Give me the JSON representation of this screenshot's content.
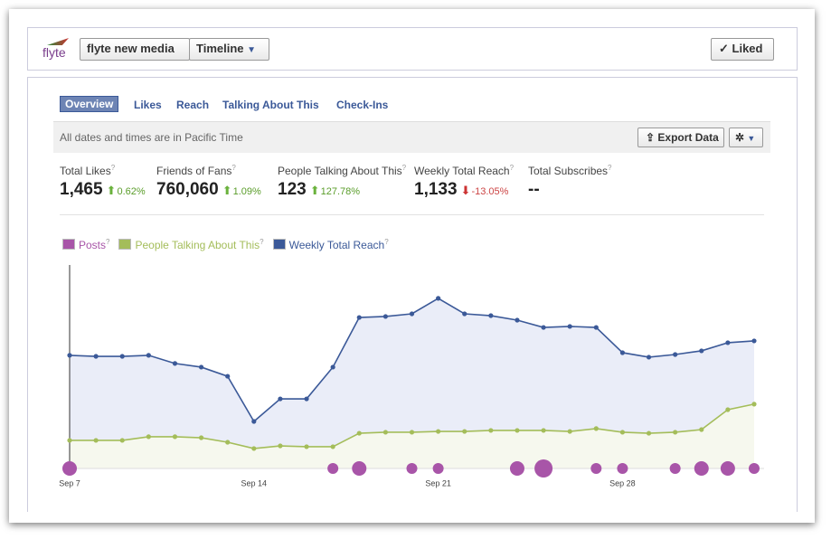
{
  "header": {
    "logo": "flyte",
    "page_name": "flyte new media",
    "view": "Timeline",
    "liked": "Liked"
  },
  "tabs": [
    "Overview",
    "Likes",
    "Reach",
    "Talking About This",
    "Check-Ins"
  ],
  "timezone_note": "All dates and times are in Pacific Time",
  "export": "Export Data",
  "help": "?",
  "stats": [
    {
      "label": "Total Likes",
      "value": "1,465",
      "change": "0.62%",
      "direction": "up"
    },
    {
      "label": "Friends of Fans",
      "value": "760,060",
      "change": "1.09%",
      "direction": "up"
    },
    {
      "label": "People Talking About This",
      "value": "123",
      "change": "127.78%",
      "direction": "up"
    },
    {
      "label": "Weekly Total Reach",
      "value": "1,133",
      "change": "-13.05%",
      "direction": "down"
    },
    {
      "label": "Total Subscribes",
      "value": "--"
    }
  ],
  "chart_data": {
    "type": "line",
    "categories": [
      "Sep 7",
      null,
      null,
      null,
      null,
      null,
      null,
      "Sep 14",
      null,
      null,
      null,
      null,
      null,
      null,
      "Sep 21",
      null,
      null,
      null,
      null,
      null,
      null,
      "Sep 28",
      null,
      null,
      null,
      null,
      null
    ],
    "ylim": [
      0,
      100
    ],
    "series": [
      {
        "name": "Posts",
        "color": "#a855a8",
        "kind": "bubble",
        "values": [
          2,
          null,
          null,
          null,
          null,
          null,
          null,
          null,
          null,
          null,
          1,
          2,
          null,
          1,
          1,
          null,
          null,
          2,
          3,
          null,
          1,
          1,
          null,
          1,
          2,
          2,
          1
        ]
      },
      {
        "name": "People Talking About This",
        "color": "#a4bd5a",
        "kind": "area",
        "fill": "#f6f8ee",
        "values": [
          13.8,
          13.8,
          13.8,
          15.6,
          15.6,
          15.1,
          12.9,
          9.8,
          11.1,
          10.7,
          10.7,
          17.3,
          17.8,
          17.8,
          18.2,
          18.2,
          18.7,
          18.7,
          18.7,
          18.2,
          19.6,
          17.8,
          17.3,
          17.8,
          19.1,
          28.9,
          31.6
        ]
      },
      {
        "name": "Weekly Total Reach",
        "color": "#3b5998",
        "kind": "area",
        "fill": "#eaedf8",
        "values": [
          55.6,
          55.1,
          55.1,
          55.6,
          51.6,
          49.8,
          45.3,
          23.1,
          34.2,
          34.2,
          49.8,
          74.2,
          74.7,
          76.0,
          83.6,
          76.0,
          75.1,
          72.9,
          69.3,
          69.8,
          69.3,
          56.9,
          54.7,
          56.0,
          57.8,
          61.8,
          62.7
        ]
      }
    ]
  }
}
